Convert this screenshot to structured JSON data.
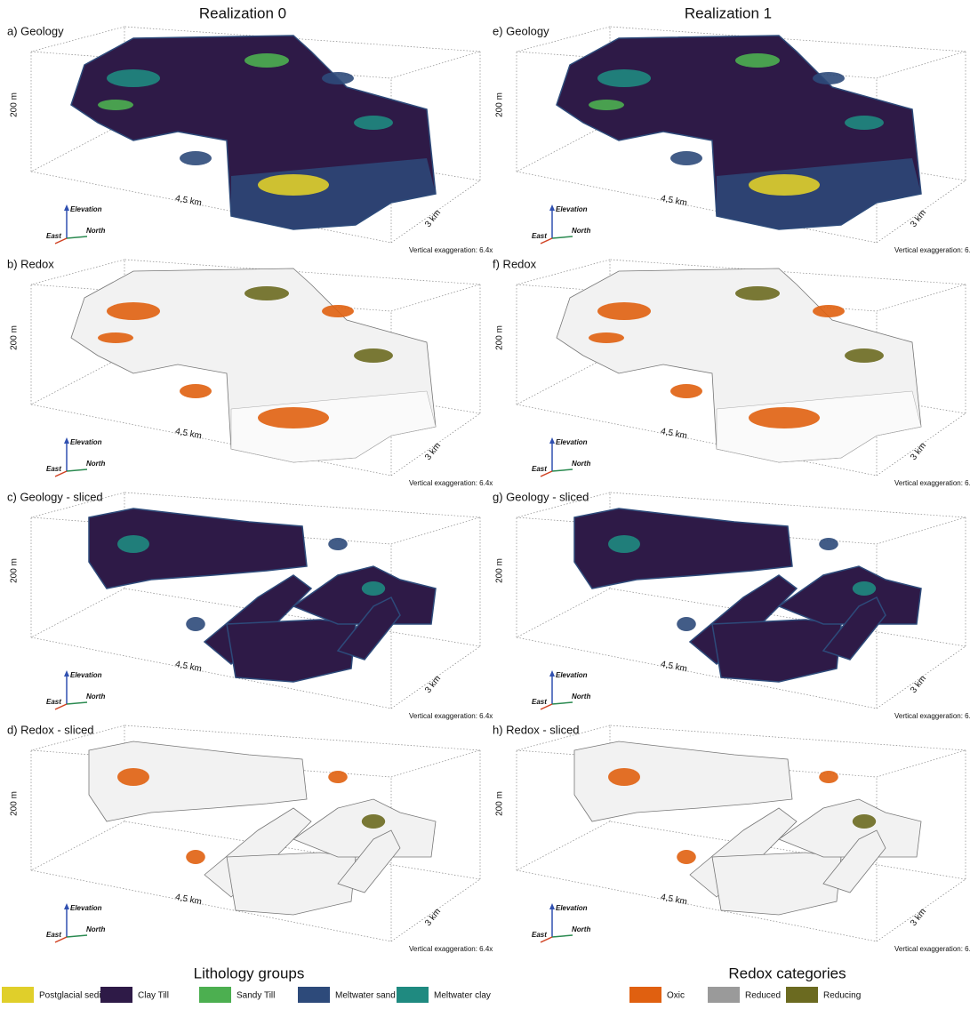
{
  "columns": [
    {
      "title": "Realization 0",
      "panels": [
        {
          "label": "a) Geology"
        },
        {
          "label": "b) Redox"
        },
        {
          "label": "c) Geology - sliced"
        },
        {
          "label": "d) Redox - sliced"
        }
      ]
    },
    {
      "title": "Realization 1",
      "panels": [
        {
          "label": "e) Geology"
        },
        {
          "label": "f) Redox"
        },
        {
          "label": "g) Geology - sliced"
        },
        {
          "label": "h) Redox - sliced"
        }
      ]
    }
  ],
  "axes": {
    "vertical": "200 m",
    "length": "4,5 km",
    "depth": "3 km",
    "exaggeration": "Vertical exaggeration: 6.4x",
    "elevation": "Elevation",
    "east": "East",
    "north": "North"
  },
  "legends": [
    {
      "title": "Lithology groups",
      "items": [
        {
          "name": "Postglacial sediments",
          "color": "#e0cf2a"
        },
        {
          "name": "Clay Till",
          "color": "#2e1a47"
        },
        {
          "name": "Sandy Till",
          "color": "#4caf50"
        },
        {
          "name": "Meltwater sand",
          "color": "#2d4a7a"
        },
        {
          "name": "Meltwater clay",
          "color": "#1f8a80"
        }
      ]
    },
    {
      "title": "Redox categories",
      "items": [
        {
          "name": "Oxic",
          "color": "#e06010"
        },
        {
          "name": "Reduced",
          "color": "#9a9a9a"
        },
        {
          "name": "Reducing",
          "color": "#6b6a20"
        }
      ]
    }
  ]
}
